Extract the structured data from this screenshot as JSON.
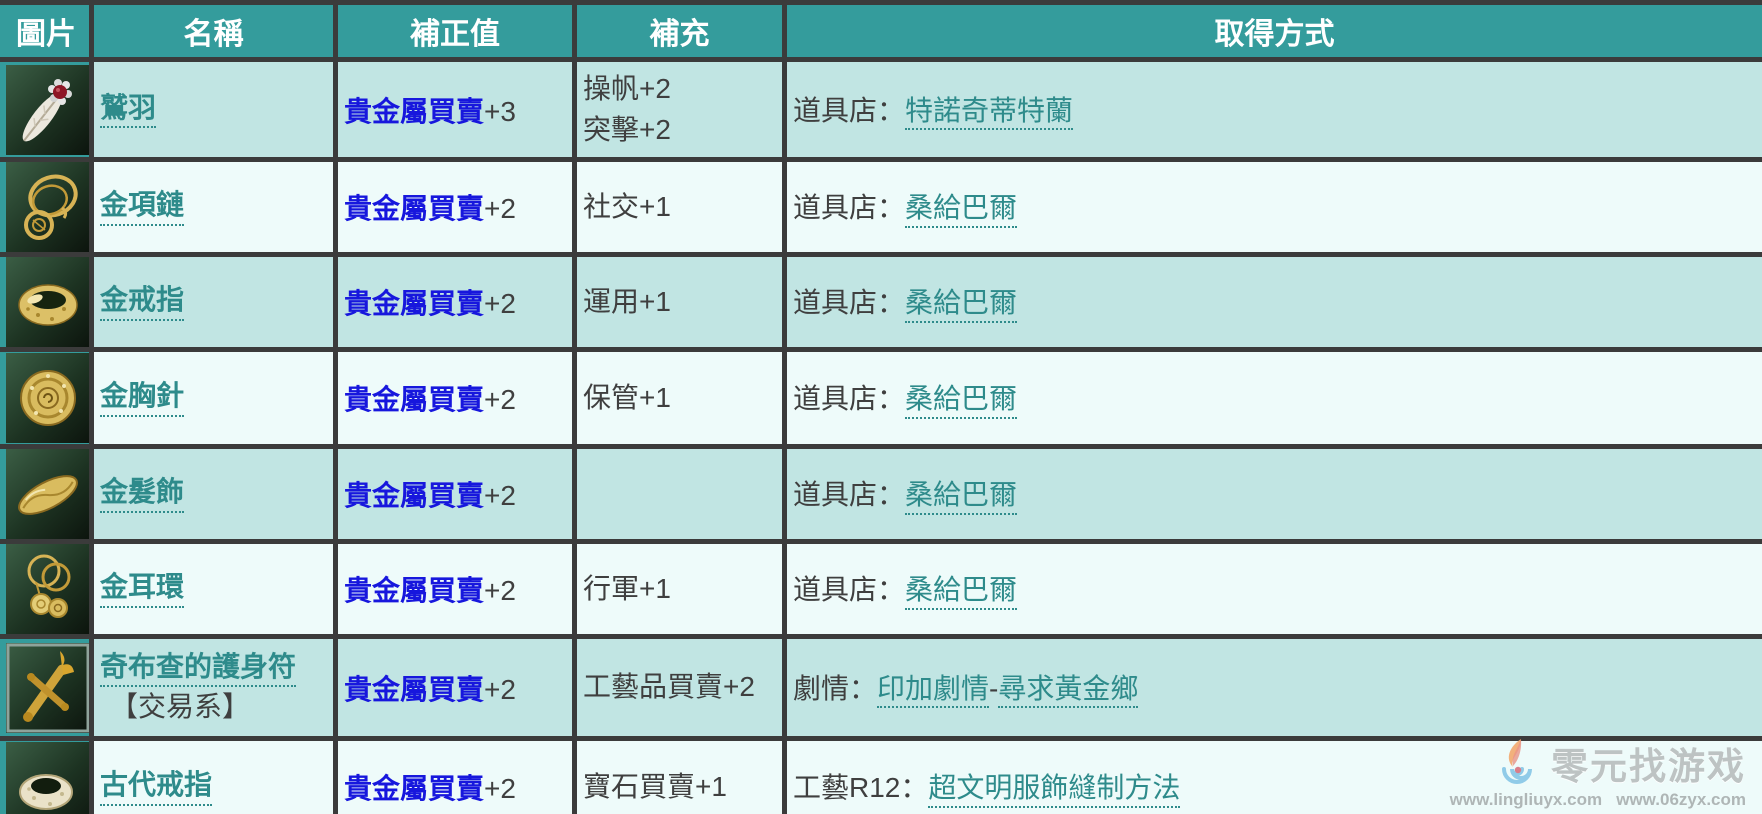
{
  "table": {
    "headers": [
      "圖片",
      "名稱",
      "補正值",
      "補充",
      "取得方式"
    ],
    "rows": [
      {
        "icon": "feather-icon",
        "name": "鷲羽",
        "name_note": "",
        "skill": "貴金屬買賣",
        "skill_value": "+3",
        "supplement": [
          "操帆+2",
          "突擊+2"
        ],
        "acquisition": [
          {
            "text": "道具店：",
            "link": false
          },
          {
            "text": "特諾奇蒂特蘭",
            "link": true
          }
        ]
      },
      {
        "icon": "necklace-icon",
        "name": "金項鏈",
        "name_note": "",
        "skill": "貴金屬買賣",
        "skill_value": "+2",
        "supplement": [
          "社交+1"
        ],
        "acquisition": [
          {
            "text": "道具店：",
            "link": false
          },
          {
            "text": "桑給巴爾",
            "link": true
          }
        ]
      },
      {
        "icon": "ring-icon",
        "name": "金戒指",
        "name_note": "",
        "skill": "貴金屬買賣",
        "skill_value": "+2",
        "supplement": [
          "運用+1"
        ],
        "acquisition": [
          {
            "text": "道具店：",
            "link": false
          },
          {
            "text": "桑給巴爾",
            "link": true
          }
        ]
      },
      {
        "icon": "brooch-icon",
        "name": "金胸針",
        "name_note": "",
        "skill": "貴金屬買賣",
        "skill_value": "+2",
        "supplement": [
          "保管+1"
        ],
        "acquisition": [
          {
            "text": "道具店：",
            "link": false
          },
          {
            "text": "桑給巴爾",
            "link": true
          }
        ]
      },
      {
        "icon": "hair-ornament-icon",
        "name": "金髮飾",
        "name_note": "",
        "skill": "貴金屬買賣",
        "skill_value": "+2",
        "supplement": [],
        "acquisition": [
          {
            "text": "道具店：",
            "link": false
          },
          {
            "text": "桑給巴爾",
            "link": true
          }
        ]
      },
      {
        "icon": "earring-icon",
        "name": "金耳環",
        "name_note": "",
        "skill": "貴金屬買賣",
        "skill_value": "+2",
        "supplement": [
          "行軍+1"
        ],
        "acquisition": [
          {
            "text": "道具店：",
            "link": false
          },
          {
            "text": "桑給巴爾",
            "link": true
          }
        ]
      },
      {
        "icon": "amulet-icon",
        "name": "奇布查的護身符",
        "name_note": "【交易系】",
        "skill": "貴金屬買賣",
        "skill_value": "+2",
        "supplement": [
          "工藝品買賣+2"
        ],
        "acquisition": [
          {
            "text": "劇情：",
            "link": false
          },
          {
            "text": "印加劇情",
            "link": true
          },
          {
            "text": "-",
            "link": false
          },
          {
            "text": "尋求黃金鄉",
            "link": true
          }
        ]
      },
      {
        "icon": "ancient-ring-icon",
        "name": "古代戒指",
        "name_note": "",
        "skill": "貴金屬買賣",
        "skill_value": "+2",
        "supplement": [
          "寶石買賣+1"
        ],
        "acquisition": [
          {
            "text": "工藝R12：",
            "link": false
          },
          {
            "text": "超文明服飾縫制方法",
            "link": true
          }
        ]
      }
    ]
  },
  "watermark": {
    "logo": "flame-swirl-logo-icon",
    "title": "零元找游戏",
    "urls": "www.lingliuyx.com   www.06zyx.com"
  },
  "colors": {
    "header_bg": "#349c9c",
    "row_dark": "#c1e5e3",
    "row_light": "#eefbfa",
    "border": "#3b3b3b",
    "link_teal": "#2e8b8b",
    "link_blue": "#1717dd"
  }
}
